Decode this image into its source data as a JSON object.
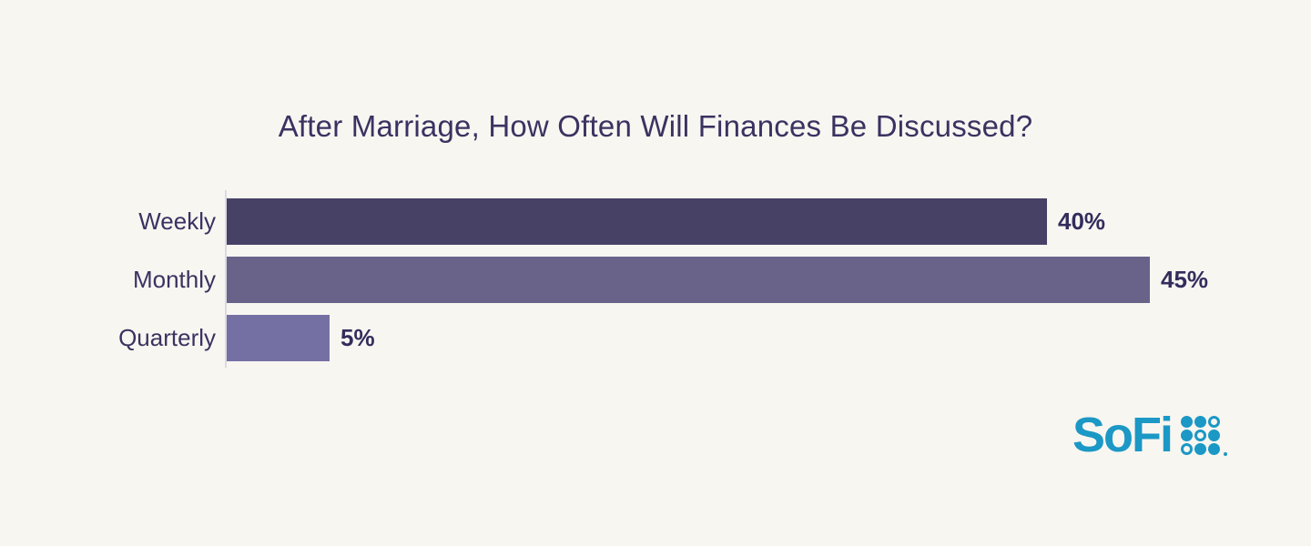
{
  "page": {
    "background": "#f8f6f1"
  },
  "chart_data": {
    "type": "bar",
    "orientation": "horizontal",
    "title": "After Marriage, How Often Will Finances Be Discussed?",
    "categories": [
      "Weekly",
      "Monthly",
      "Quarterly"
    ],
    "values": [
      40,
      45,
      5
    ],
    "value_labels": [
      "40%",
      "45%",
      "5%"
    ],
    "xlim": [
      0,
      45
    ],
    "bar_colors": [
      "#474166",
      "#69638a",
      "#7570a3"
    ],
    "title_color": "#3a3361",
    "label_color": "#3a3361",
    "value_label_color": "#332d5c",
    "axis_line_color": "#dcd9e3",
    "grid": false,
    "legend": false
  },
  "branding": {
    "logo_text": "SoFi",
    "logo_color": "#1b98c5",
    "dots_pattern": [
      "filled",
      "filled",
      "outlined",
      "filled",
      "outlined",
      "filled",
      "outlined",
      "filled",
      "filled"
    ]
  }
}
